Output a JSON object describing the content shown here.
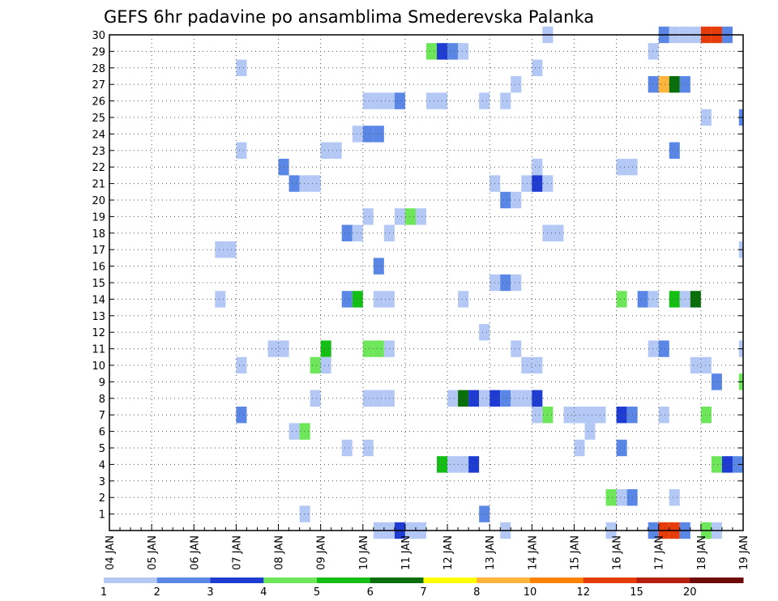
{
  "chart_data": {
    "type": "heatmap",
    "title": "GEFS 6hr padavine po ansamblima Smederevska Palanka",
    "x_tick_labels": [
      "04 JAN",
      "05 JAN",
      "06 JAN",
      "07 JAN",
      "08 JAN",
      "09 JAN",
      "10 JAN",
      "11 JAN",
      "12 JAN",
      "13 JAN",
      "14 JAN",
      "15 JAN",
      "16 JAN",
      "17 JAN",
      "18 JAN",
      "19 JAN"
    ],
    "xlim_days": [
      0,
      15
    ],
    "y_tick_labels": [
      "1",
      "2",
      "3",
      "4",
      "5",
      "6",
      "7",
      "8",
      "9",
      "10",
      "11",
      "12",
      "13",
      "14",
      "15",
      "16",
      "17",
      "18",
      "19",
      "20",
      "21",
      "22",
      "23",
      "24",
      "25",
      "26",
      "27",
      "28",
      "29",
      "30"
    ],
    "ylim": [
      0,
      30
    ],
    "grid": true,
    "colorbar": {
      "labels": [
        "1",
        "2",
        "3",
        "4",
        "5",
        "6",
        "7",
        "8",
        "10",
        "12",
        "15",
        "20"
      ],
      "colors": [
        "#b4c8f5",
        "#5a87e6",
        "#1e3cd2",
        "#6ee65a",
        "#14be14",
        "#0a6e0a",
        "#ffff00",
        "#ffb43c",
        "#ff8200",
        "#e63c0a",
        "#b41e0a",
        "#6e0a0a"
      ]
    },
    "cells": [
      {
        "m": 30,
        "d": 10.25,
        "c": 1
      },
      {
        "m": 30,
        "d": 13.0,
        "c": 2
      },
      {
        "m": 30,
        "d": 13.25,
        "c": 1
      },
      {
        "m": 30,
        "d": 13.5,
        "c": 1
      },
      {
        "m": 30,
        "d": 13.75,
        "c": 1
      },
      {
        "m": 30,
        "d": 14.0,
        "c": 10
      },
      {
        "m": 30,
        "d": 14.25,
        "c": 10
      },
      {
        "m": 30,
        "d": 14.5,
        "c": 2
      },
      {
        "m": 29,
        "d": 7.5,
        "c": 4
      },
      {
        "m": 29,
        "d": 7.75,
        "c": 3
      },
      {
        "m": 29,
        "d": 8.0,
        "c": 2
      },
      {
        "m": 29,
        "d": 8.25,
        "c": 1
      },
      {
        "m": 29,
        "d": 12.75,
        "c": 1
      },
      {
        "m": 28,
        "d": 3.0,
        "c": 1
      },
      {
        "m": 28,
        "d": 10.0,
        "c": 1
      },
      {
        "m": 27,
        "d": 9.5,
        "c": 1
      },
      {
        "m": 27,
        "d": 12.75,
        "c": 2
      },
      {
        "m": 27,
        "d": 13.0,
        "c": 8
      },
      {
        "m": 27,
        "d": 13.25,
        "c": 6
      },
      {
        "m": 27,
        "d": 13.5,
        "c": 2
      },
      {
        "m": 26,
        "d": 6.0,
        "c": 1
      },
      {
        "m": 26,
        "d": 6.25,
        "c": 1
      },
      {
        "m": 26,
        "d": 6.5,
        "c": 1
      },
      {
        "m": 26,
        "d": 6.75,
        "c": 2
      },
      {
        "m": 26,
        "d": 7.5,
        "c": 1
      },
      {
        "m": 26,
        "d": 7.75,
        "c": 1
      },
      {
        "m": 26,
        "d": 8.75,
        "c": 1
      },
      {
        "m": 26,
        "d": 9.25,
        "c": 1
      },
      {
        "m": 25,
        "d": 14.0,
        "c": 1
      },
      {
        "m": 25,
        "d": 14.9,
        "c": 2
      },
      {
        "m": 24,
        "d": 5.75,
        "c": 1
      },
      {
        "m": 24,
        "d": 6.0,
        "c": 2
      },
      {
        "m": 24,
        "d": 6.25,
        "c": 2
      },
      {
        "m": 23,
        "d": 3.0,
        "c": 1
      },
      {
        "m": 23,
        "d": 5.0,
        "c": 1
      },
      {
        "m": 23,
        "d": 5.25,
        "c": 1
      },
      {
        "m": 23,
        "d": 13.25,
        "c": 2
      },
      {
        "m": 22,
        "d": 4.0,
        "c": 2
      },
      {
        "m": 22,
        "d": 10.0,
        "c": 1
      },
      {
        "m": 22,
        "d": 12.0,
        "c": 1
      },
      {
        "m": 22,
        "d": 12.25,
        "c": 1
      },
      {
        "m": 21,
        "d": 4.25,
        "c": 2
      },
      {
        "m": 21,
        "d": 4.5,
        "c": 1
      },
      {
        "m": 21,
        "d": 4.75,
        "c": 1
      },
      {
        "m": 21,
        "d": 9.0,
        "c": 1
      },
      {
        "m": 21,
        "d": 9.75,
        "c": 1
      },
      {
        "m": 21,
        "d": 10.0,
        "c": 3
      },
      {
        "m": 21,
        "d": 10.25,
        "c": 1
      },
      {
        "m": 20,
        "d": 9.25,
        "c": 2
      },
      {
        "m": 20,
        "d": 9.5,
        "c": 1
      },
      {
        "m": 19,
        "d": 6.0,
        "c": 1
      },
      {
        "m": 19,
        "d": 6.75,
        "c": 1
      },
      {
        "m": 19,
        "d": 7.0,
        "c": 4
      },
      {
        "m": 19,
        "d": 7.25,
        "c": 1
      },
      {
        "m": 18,
        "d": 5.5,
        "c": 2
      },
      {
        "m": 18,
        "d": 5.75,
        "c": 1
      },
      {
        "m": 18,
        "d": 6.5,
        "c": 1
      },
      {
        "m": 18,
        "d": 10.25,
        "c": 1
      },
      {
        "m": 18,
        "d": 10.5,
        "c": 1
      },
      {
        "m": 17,
        "d": 2.5,
        "c": 1
      },
      {
        "m": 17,
        "d": 2.75,
        "c": 1
      },
      {
        "m": 17,
        "d": 14.9,
        "c": 1
      },
      {
        "m": 16,
        "d": 6.25,
        "c": 2
      },
      {
        "m": 15,
        "d": 9.0,
        "c": 1
      },
      {
        "m": 15,
        "d": 9.25,
        "c": 2
      },
      {
        "m": 15,
        "d": 9.5,
        "c": 1
      },
      {
        "m": 14,
        "d": 2.5,
        "c": 1
      },
      {
        "m": 14,
        "d": 5.5,
        "c": 2
      },
      {
        "m": 14,
        "d": 5.75,
        "c": 5
      },
      {
        "m": 14,
        "d": 6.25,
        "c": 1
      },
      {
        "m": 14,
        "d": 6.5,
        "c": 1
      },
      {
        "m": 14,
        "d": 8.25,
        "c": 1
      },
      {
        "m": 14,
        "d": 12.0,
        "c": 4
      },
      {
        "m": 14,
        "d": 12.5,
        "c": 2
      },
      {
        "m": 14,
        "d": 12.75,
        "c": 1
      },
      {
        "m": 14,
        "d": 13.25,
        "c": 5
      },
      {
        "m": 14,
        "d": 13.5,
        "c": 1
      },
      {
        "m": 14,
        "d": 13.75,
        "c": 6
      },
      {
        "m": 12,
        "d": 8.75,
        "c": 1
      },
      {
        "m": 11,
        "d": 3.75,
        "c": 1
      },
      {
        "m": 11,
        "d": 4.0,
        "c": 1
      },
      {
        "m": 11,
        "d": 5.0,
        "c": 5
      },
      {
        "m": 11,
        "d": 6.0,
        "c": 4
      },
      {
        "m": 11,
        "d": 6.25,
        "c": 4
      },
      {
        "m": 11,
        "d": 6.5,
        "c": 1
      },
      {
        "m": 11,
        "d": 9.5,
        "c": 1
      },
      {
        "m": 11,
        "d": 12.75,
        "c": 1
      },
      {
        "m": 11,
        "d": 13.0,
        "c": 2
      },
      {
        "m": 11,
        "d": 14.9,
        "c": 1
      },
      {
        "m": 10,
        "d": 3.0,
        "c": 1
      },
      {
        "m": 10,
        "d": 4.75,
        "c": 4
      },
      {
        "m": 10,
        "d": 5.0,
        "c": 1
      },
      {
        "m": 10,
        "d": 9.75,
        "c": 1
      },
      {
        "m": 10,
        "d": 10.0,
        "c": 1
      },
      {
        "m": 10,
        "d": 13.75,
        "c": 1
      },
      {
        "m": 10,
        "d": 14.0,
        "c": 1
      },
      {
        "m": 9,
        "d": 14.25,
        "c": 2
      },
      {
        "m": 9,
        "d": 14.9,
        "c": 4
      },
      {
        "m": 8,
        "d": 4.75,
        "c": 1
      },
      {
        "m": 8,
        "d": 6.0,
        "c": 1
      },
      {
        "m": 8,
        "d": 6.25,
        "c": 1
      },
      {
        "m": 8,
        "d": 6.5,
        "c": 1
      },
      {
        "m": 8,
        "d": 8.0,
        "c": 1
      },
      {
        "m": 8,
        "d": 8.25,
        "c": 6
      },
      {
        "m": 8,
        "d": 8.5,
        "c": 3
      },
      {
        "m": 8,
        "d": 8.75,
        "c": 1
      },
      {
        "m": 8,
        "d": 9.0,
        "c": 3
      },
      {
        "m": 8,
        "d": 9.25,
        "c": 2
      },
      {
        "m": 8,
        "d": 9.5,
        "c": 1
      },
      {
        "m": 8,
        "d": 9.75,
        "c": 1
      },
      {
        "m": 8,
        "d": 10.0,
        "c": 3
      },
      {
        "m": 7,
        "d": 3.0,
        "c": 2
      },
      {
        "m": 7,
        "d": 10.0,
        "c": 1
      },
      {
        "m": 7,
        "d": 10.25,
        "c": 4
      },
      {
        "m": 7,
        "d": 10.75,
        "c": 1
      },
      {
        "m": 7,
        "d": 11.0,
        "c": 1
      },
      {
        "m": 7,
        "d": 11.25,
        "c": 1
      },
      {
        "m": 7,
        "d": 11.5,
        "c": 1
      },
      {
        "m": 7,
        "d": 12.0,
        "c": 3
      },
      {
        "m": 7,
        "d": 12.25,
        "c": 2
      },
      {
        "m": 7,
        "d": 13.0,
        "c": 1
      },
      {
        "m": 7,
        "d": 14.0,
        "c": 4
      },
      {
        "m": 6,
        "d": 4.25,
        "c": 1
      },
      {
        "m": 6,
        "d": 4.5,
        "c": 4
      },
      {
        "m": 6,
        "d": 11.25,
        "c": 1
      },
      {
        "m": 5,
        "d": 5.5,
        "c": 1
      },
      {
        "m": 5,
        "d": 6.0,
        "c": 1
      },
      {
        "m": 5,
        "d": 11.0,
        "c": 1
      },
      {
        "m": 5,
        "d": 12.0,
        "c": 2
      },
      {
        "m": 4,
        "d": 7.75,
        "c": 5
      },
      {
        "m": 4,
        "d": 8.0,
        "c": 1
      },
      {
        "m": 4,
        "d": 8.25,
        "c": 1
      },
      {
        "m": 4,
        "d": 8.5,
        "c": 3
      },
      {
        "m": 4,
        "d": 14.25,
        "c": 4
      },
      {
        "m": 4,
        "d": 14.5,
        "c": 3
      },
      {
        "m": 4,
        "d": 14.75,
        "c": 2
      },
      {
        "m": 2,
        "d": 11.75,
        "c": 4
      },
      {
        "m": 2,
        "d": 12.0,
        "c": 1
      },
      {
        "m": 2,
        "d": 12.25,
        "c": 2
      },
      {
        "m": 2,
        "d": 13.25,
        "c": 1
      },
      {
        "m": 1,
        "d": 4.5,
        "c": 1
      },
      {
        "m": 1,
        "d": 8.75,
        "c": 2
      },
      {
        "m": 0,
        "d": 6.25,
        "c": 1
      },
      {
        "m": 0,
        "d": 6.5,
        "c": 1
      },
      {
        "m": 0,
        "d": 6.75,
        "c": 3
      },
      {
        "m": 0,
        "d": 7.0,
        "c": 1
      },
      {
        "m": 0,
        "d": 7.25,
        "c": 1
      },
      {
        "m": 0,
        "d": 9.25,
        "c": 1
      },
      {
        "m": 0,
        "d": 11.75,
        "c": 1
      },
      {
        "m": 0,
        "d": 12.75,
        "c": 2
      },
      {
        "m": 0,
        "d": 13.0,
        "c": 10
      },
      {
        "m": 0,
        "d": 13.25,
        "c": 10
      },
      {
        "m": 0,
        "d": 13.5,
        "c": 2
      },
      {
        "m": 0,
        "d": 14.0,
        "c": 4
      },
      {
        "m": 0,
        "d": 14.25,
        "c": 1
      }
    ]
  }
}
